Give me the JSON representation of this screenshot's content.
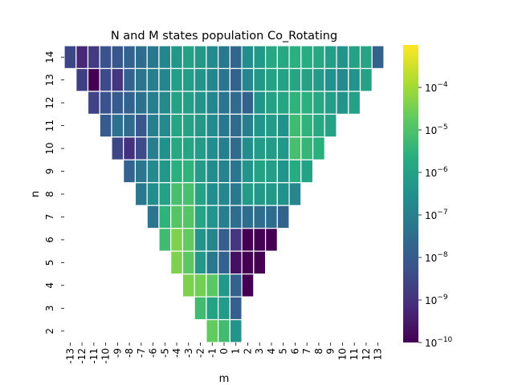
{
  "chart_data": {
    "type": "heatmap",
    "title": "N and M states population Co_Rotating",
    "xlabel": "m",
    "ylabel": "n",
    "x_categories": [
      -13,
      -12,
      -11,
      -10,
      -9,
      -8,
      -7,
      -6,
      -5,
      -4,
      -3,
      -2,
      -1,
      0,
      1,
      2,
      3,
      4,
      5,
      6,
      7,
      8,
      9,
      10,
      11,
      12,
      13
    ],
    "y_categories": [
      14,
      13,
      12,
      11,
      10,
      9,
      8,
      7,
      6,
      5,
      4,
      3,
      2
    ],
    "x_tick_labels": [
      "-13",
      "-12",
      "-11",
      "-10",
      "-9",
      "-8",
      "-7",
      "-6",
      "-5",
      "-4",
      "-3",
      "-2",
      "-1",
      "0",
      "1",
      "2",
      "3",
      "4",
      "5",
      "6",
      "7",
      "8",
      "9",
      "10",
      "11",
      "12",
      "13"
    ],
    "y_tick_labels": [
      "14",
      "13",
      "12",
      "11",
      "10",
      "9",
      "8",
      "7",
      "6",
      "5",
      "4",
      "3",
      "2"
    ],
    "value_scale": "log",
    "value_range": [
      1e-10,
      0.001
    ],
    "colormap": "viridis",
    "colorbar_ticks": [
      {
        "base": "10",
        "exp": "−4",
        "value": 0.0001
      },
      {
        "base": "10",
        "exp": "−5",
        "value": 1e-05
      },
      {
        "base": "10",
        "exp": "−6",
        "value": 1e-06
      },
      {
        "base": "10",
        "exp": "−7",
        "value": 1e-07
      },
      {
        "base": "10",
        "exp": "−8",
        "value": 1e-08
      },
      {
        "base": "10",
        "exp": "−9",
        "value": 1e-09
      },
      {
        "base": "10",
        "exp": "−10",
        "value": 1e-10
      }
    ],
    "cell_border_color": "#ffffff",
    "log10_values": [
      [
        -8.5,
        -9.2,
        -8.8,
        -8.2,
        -8.1,
        -7.8,
        -7.5,
        -7.2,
        -6.8,
        -6.3,
        -6.0,
        -6.3,
        -6.7,
        -7.2,
        -7.7,
        -6.6,
        -6.3,
        -5.8,
        -5.8,
        -5.6,
        -5.7,
        -5.8,
        -6.1,
        -6.4,
        -6.0,
        -5.9,
        -7.8
      ],
      [
        null,
        -8.7,
        -10.0,
        -8.4,
        -8.9,
        -7.8,
        -7.3,
        -7.0,
        -6.8,
        -6.1,
        -6.1,
        -6.4,
        -6.8,
        -7.3,
        -7.8,
        -6.8,
        -6.3,
        -6.0,
        -6.0,
        -5.9,
        -6.0,
        -6.2,
        -6.5,
        -6.7,
        -6.4,
        -6.0,
        null
      ],
      [
        null,
        null,
        -8.6,
        -8.2,
        -8.0,
        -7.8,
        -7.4,
        -7.0,
        -6.7,
        -6.0,
        -6.1,
        -6.4,
        -6.8,
        -7.3,
        -7.6,
        -7.8,
        -6.4,
        -6.0,
        -5.9,
        -5.5,
        -5.6,
        -5.8,
        -6.1,
        -6.4,
        -6.0,
        null,
        null
      ],
      [
        null,
        null,
        null,
        -8.0,
        -7.4,
        -7.6,
        -8.1,
        -7.0,
        -6.7,
        -5.9,
        -6.0,
        -6.3,
        -6.7,
        -7.2,
        -7.6,
        -7.0,
        -6.4,
        -6.2,
        -6.5,
        -5.2,
        -5.5,
        -5.8,
        -6.0,
        null,
        null,
        null,
        null
      ],
      [
        null,
        null,
        null,
        null,
        -8.5,
        -9.0,
        -8.4,
        -7.0,
        -6.5,
        -5.8,
        -5.9,
        -6.2,
        -6.6,
        -7.0,
        -7.6,
        -6.6,
        -6.2,
        -6.2,
        -6.3,
        -5.1,
        -5.4,
        -5.6,
        null,
        null,
        null,
        null,
        null
      ],
      [
        null,
        null,
        null,
        null,
        null,
        -7.8,
        -7.3,
        -6.7,
        -6.3,
        -5.6,
        -5.5,
        -6.2,
        -6.6,
        -6.9,
        -7.3,
        -6.4,
        -6.0,
        -6.1,
        -6.4,
        -5.7,
        -6.0,
        null,
        null,
        null,
        null,
        null,
        null
      ],
      [
        null,
        null,
        null,
        null,
        null,
        null,
        -7.2,
        -6.6,
        -6.0,
        -5.1,
        -5.1,
        -6.0,
        -6.6,
        -6.8,
        -7.2,
        -6.2,
        -6.3,
        -6.3,
        -6.5,
        -6.8,
        null,
        null,
        null,
        null,
        null,
        null,
        null
      ],
      [
        null,
        null,
        null,
        null,
        null,
        null,
        null,
        -7.3,
        -5.5,
        -4.9,
        -4.9,
        -5.9,
        -6.4,
        -7.0,
        -7.5,
        -7.5,
        -7.5,
        -7.5,
        -7.8,
        null,
        null,
        null,
        null,
        null,
        null,
        null,
        null
      ],
      [
        null,
        null,
        null,
        null,
        null,
        null,
        null,
        null,
        -5.2,
        -4.4,
        -4.7,
        -6.4,
        -6.8,
        -7.9,
        -8.9,
        -10.0,
        -10.0,
        -10.0,
        null,
        null,
        null,
        null,
        null,
        null,
        null,
        null,
        null
      ],
      [
        null,
        null,
        null,
        null,
        null,
        null,
        null,
        null,
        null,
        -4.4,
        -4.8,
        -6.3,
        -7.2,
        -7.8,
        -9.7,
        -10.0,
        -10.0,
        null,
        null,
        null,
        null,
        null,
        null,
        null,
        null,
        null,
        null
      ],
      [
        null,
        null,
        null,
        null,
        null,
        null,
        null,
        null,
        null,
        null,
        -4.4,
        -4.5,
        -4.8,
        -6.3,
        -7.8,
        -10.0,
        null,
        null,
        null,
        null,
        null,
        null,
        null,
        null,
        null,
        null,
        null
      ],
      [
        null,
        null,
        null,
        null,
        null,
        null,
        null,
        null,
        null,
        null,
        null,
        -5.2,
        -6.0,
        -6.2,
        -7.9,
        null,
        null,
        null,
        null,
        null,
        null,
        null,
        null,
        null,
        null,
        null,
        null
      ],
      [
        null,
        null,
        null,
        null,
        null,
        null,
        null,
        null,
        null,
        null,
        null,
        null,
        -4.7,
        -5.2,
        -6.4,
        null,
        null,
        null,
        null,
        null,
        null,
        null,
        null,
        null,
        null,
        null,
        null
      ]
    ]
  }
}
